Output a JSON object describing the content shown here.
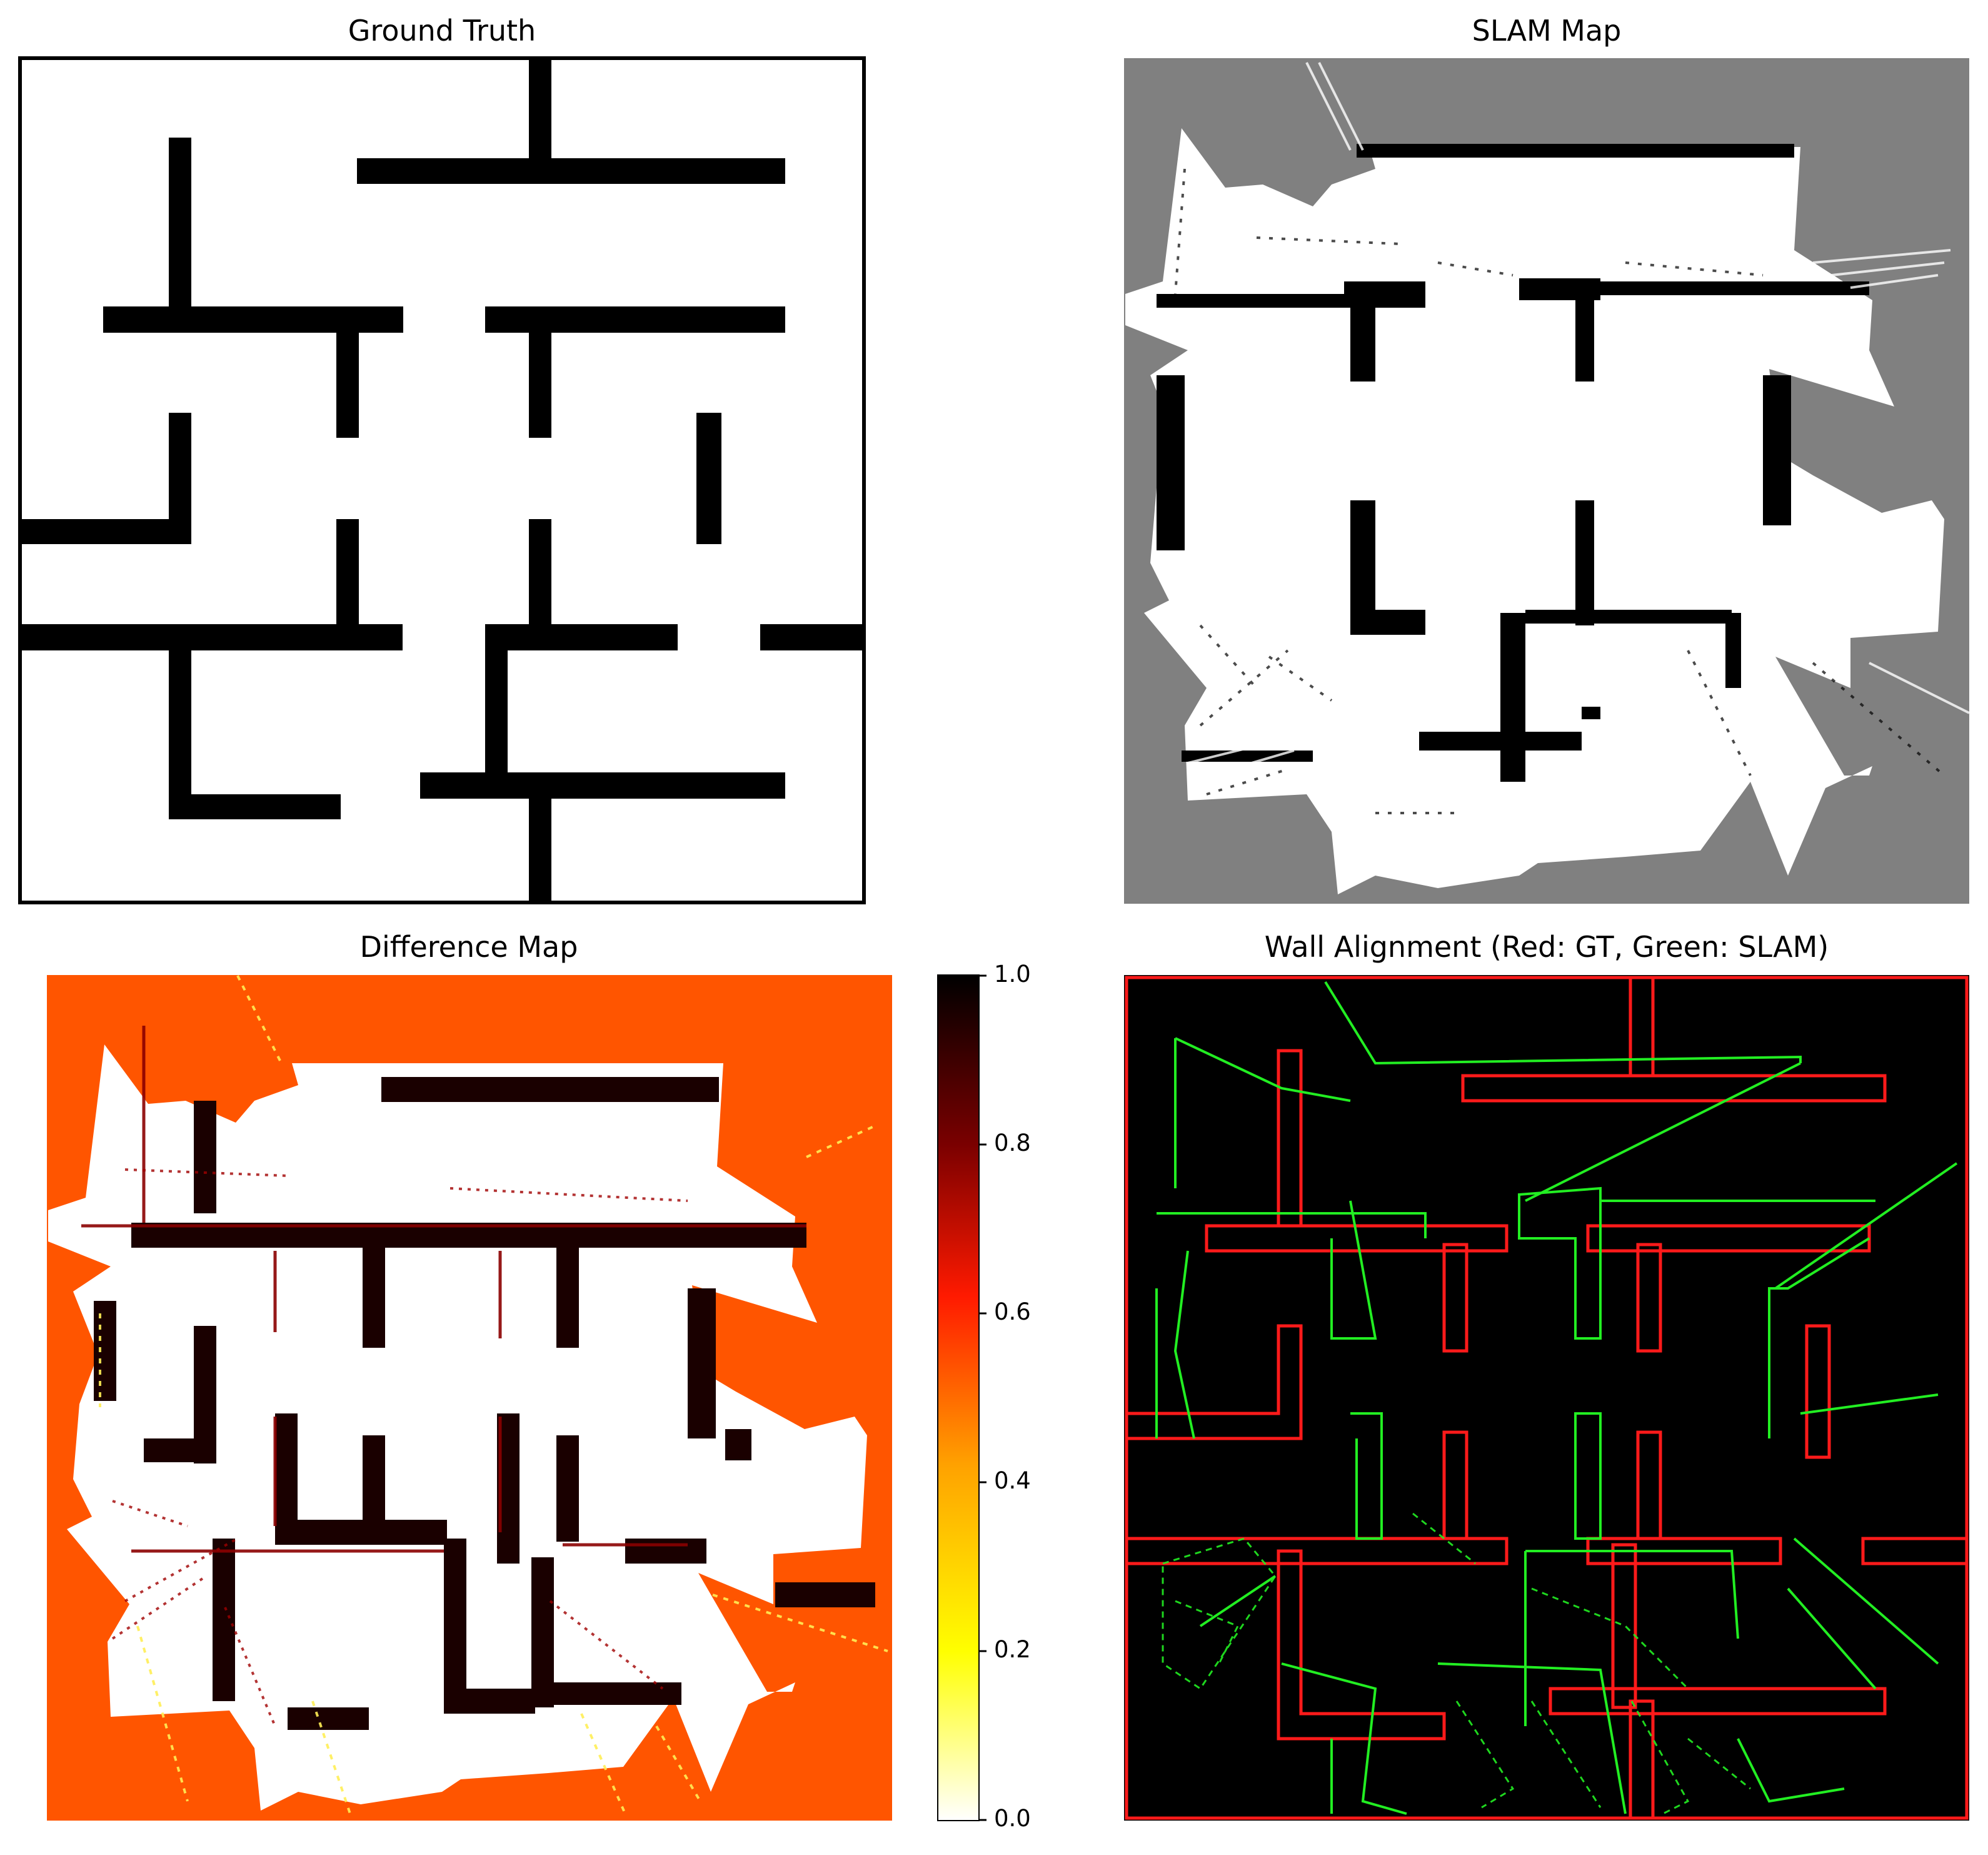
{
  "panels": {
    "ground_truth": {
      "title": "Ground Truth"
    },
    "slam_map": {
      "title": "SLAM Map"
    },
    "difference_map": {
      "title": "Difference Map"
    },
    "wall_alignment": {
      "title": "Wall Alignment (Red: GT, Green: SLAM)"
    }
  },
  "colorbar": {
    "ticks": [
      "1.0",
      "0.8",
      "0.6",
      "0.4",
      "0.2",
      "0.0"
    ],
    "tick_values": [
      1.0,
      0.8,
      0.6,
      0.4,
      0.2,
      0.0
    ],
    "range": [
      0.0,
      1.0
    ],
    "colormap_stops": [
      "#000000",
      "#7a0000",
      "#ff1a00",
      "#ffa200",
      "#ffff00",
      "#ffffff"
    ]
  },
  "colors": {
    "free": "#ffffff",
    "wall": "#000000",
    "unknown": "#808080",
    "difference_unknown": "#ff5500",
    "gt_edge": "#ff0000",
    "slam_edge": "#00ff00"
  }
}
